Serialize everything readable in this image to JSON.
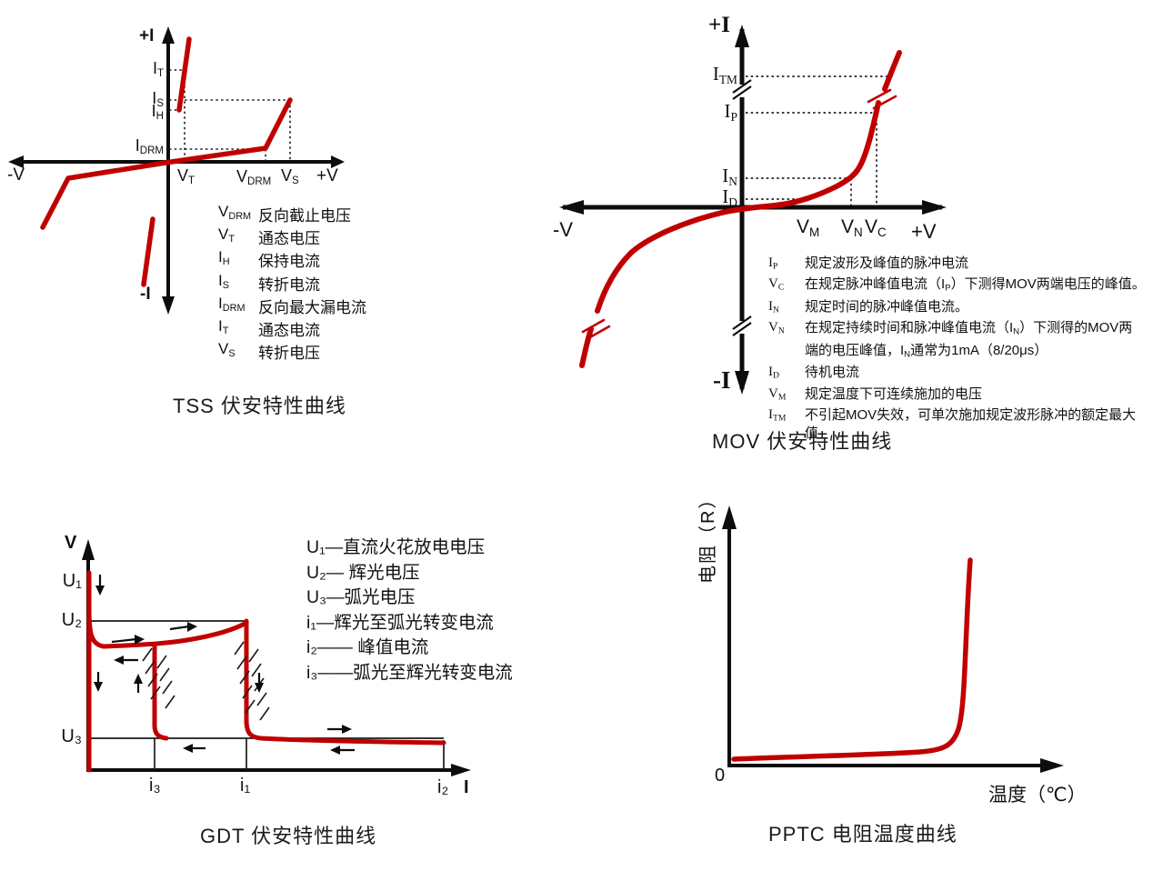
{
  "colors": {
    "curve_red": "#c00000",
    "axis_black": "#0d0d0d",
    "thin_line": "#1a1a1a"
  },
  "tss": {
    "axis_labels": {
      "pos_i": "+I",
      "neg_v": "-V",
      "pos_v": "+V",
      "neg_i": "-I"
    },
    "y_labels": [
      {
        "main": "I",
        "sub": "T"
      },
      {
        "main": "I",
        "sub": "S"
      },
      {
        "main": "I",
        "sub": "H"
      },
      {
        "main": "I",
        "sub": "DRM"
      }
    ],
    "x_labels": [
      {
        "main": "V",
        "sub": "T"
      },
      {
        "main": "V",
        "sub": "DRM"
      },
      {
        "main": "V",
        "sub": "S"
      }
    ],
    "legend": [
      {
        "main": "V",
        "sub": "DRM",
        "def": "反向截止电压"
      },
      {
        "main": "V",
        "sub": "T",
        "def": "通态电压"
      },
      {
        "main": "I",
        "sub": "H",
        "def": "保持电流"
      },
      {
        "main": "I",
        "sub": "S",
        "def": "转折电流"
      },
      {
        "main": "I",
        "sub": "DRM",
        "def": "反向最大漏电流"
      },
      {
        "main": "I",
        "sub": "T",
        "def": "通态电流"
      },
      {
        "main": "V",
        "sub": "S",
        "def": "转折电压"
      }
    ],
    "caption": "TSS 伏安特性曲线"
  },
  "mov": {
    "axis_labels": {
      "pos_i": "+I",
      "neg_v": "-V",
      "pos_v": "+V",
      "neg_i": "-I"
    },
    "y_labels": [
      {
        "main": "I",
        "sub": "TM"
      },
      {
        "main": "I",
        "sub": "P"
      },
      {
        "main": "I",
        "sub": "N"
      },
      {
        "main": "I",
        "sub": "D"
      }
    ],
    "x_labels": [
      {
        "main": "V",
        "sub": "M"
      },
      {
        "main": "V",
        "sub": "N"
      },
      {
        "main": "V",
        "sub": "C"
      }
    ],
    "legend": [
      {
        "main": "I",
        "sub": "P",
        "segments": [
          {
            "text": "规定波形及峰值的脉冲电流"
          }
        ]
      },
      {
        "main": "V",
        "sub": "C",
        "segments": [
          {
            "text": "在规定脉冲峰值电流（I"
          },
          {
            "sub": "P"
          },
          {
            "text": "）下测得MOV两端电压的峰值。"
          }
        ]
      },
      {
        "main": "I",
        "sub": "N",
        "segments": [
          {
            "text": "规定时间的脉冲峰值电流。"
          }
        ]
      },
      {
        "main": "V",
        "sub": "N",
        "segments": [
          {
            "text": "在规定持续时间和脉冲峰值电流（I"
          },
          {
            "sub": "N"
          },
          {
            "text": "）下测得的MOV两"
          },
          {
            "br": true
          },
          {
            "text": "端的电压峰值，I"
          },
          {
            "sub": "N"
          },
          {
            "text": "通常为1mA（8/20μs）"
          }
        ]
      },
      {
        "main": "I",
        "sub": "D",
        "segments": [
          {
            "text": "待机电流"
          }
        ]
      },
      {
        "main": "V",
        "sub": "M",
        "segments": [
          {
            "text": "规定温度下可连续施加的电压"
          }
        ]
      },
      {
        "main": "I",
        "sub": "TM",
        "segments": [
          {
            "text": "不引起MOV失效，可单次施加规定波形脉冲的额定最大值"
          }
        ]
      }
    ],
    "caption": "MOV 伏安特性曲线"
  },
  "gdt": {
    "axis_labels": {
      "v": "V",
      "i": "I"
    },
    "y_labels": [
      "U₁",
      "U₂",
      "U₃"
    ],
    "x_labels": [
      "i₃",
      "i₁",
      "i₂"
    ],
    "legend": [
      {
        "text": "U₁—直流火花放电电压"
      },
      {
        "text": "U₂— 辉光电压"
      },
      {
        "text": "U₃—弧光电压"
      },
      {
        "text": "i₁—辉光至弧光转变电流"
      },
      {
        "text": "i₂—— 峰值电流"
      },
      {
        "text": "i₃——弧光至辉光转变电流"
      }
    ],
    "caption": "GDT 伏安特性曲线"
  },
  "pptc": {
    "y_axis_label": "电阻（R）",
    "x_axis_label": "温度（℃）",
    "origin_label": "0",
    "caption": "PPTC 电阻温度曲线"
  }
}
